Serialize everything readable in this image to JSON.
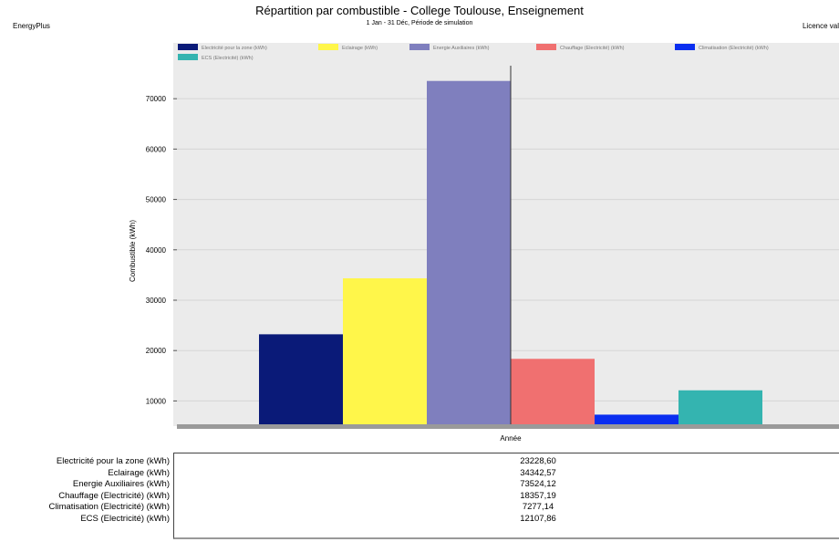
{
  "header": {
    "app_name": "EnergyPlus",
    "license_text": "Licence val"
  },
  "chart_data": {
    "type": "bar",
    "title": "Répartition par combustible - College Toulouse, Enseignement",
    "subtitle": "1 Jan - 31 Déc, Période de simulation",
    "xlabel": "Année",
    "ylabel": "Combustible (kWh)",
    "categories": [
      "Année"
    ],
    "ylim": [
      5000,
      78000
    ],
    "yticks": [
      10000,
      20000,
      30000,
      40000,
      50000,
      60000,
      70000
    ],
    "ytick_labels": [
      "10000",
      "20000",
      "30000",
      "40000",
      "50000",
      "60000",
      "70000"
    ],
    "grid": true,
    "legend_position": "top",
    "series": [
      {
        "name": "Electricité pour la zone (kWh)",
        "values": [
          23228.6
        ],
        "color": "#0a1a78"
      },
      {
        "name": "Eclairage (kWh)",
        "values": [
          34342.57
        ],
        "color": "#fff64a"
      },
      {
        "name": "Energie Auxiliaires (kWh)",
        "values": [
          73524.12
        ],
        "color": "#7f7fbe"
      },
      {
        "name": "Chauffage (Electricité) (kWh)",
        "values": [
          18357.19
        ],
        "color": "#f07070"
      },
      {
        "name": "Climatisation (Electricité) (kWh)",
        "values": [
          7277.14
        ],
        "color": "#0a2ef0"
      },
      {
        "name": "ECS (Electricité) (kWh)",
        "values": [
          12107.86
        ],
        "color": "#34b4b0"
      }
    ]
  },
  "table": {
    "rows": [
      {
        "label": "Electricité pour la zone (kWh)",
        "value": "23228,60"
      },
      {
        "label": "Eclairage (kWh)",
        "value": "34342,57"
      },
      {
        "label": "Energie Auxiliaires (kWh)",
        "value": "73524,12"
      },
      {
        "label": "Chauffage (Electricité) (kWh)",
        "value": "18357,19"
      },
      {
        "label": "Climatisation (Electricité) (kWh)",
        "value": "7277,14"
      },
      {
        "label": "ECS (Electricité) (kWh)",
        "value": "12107,86"
      }
    ]
  }
}
